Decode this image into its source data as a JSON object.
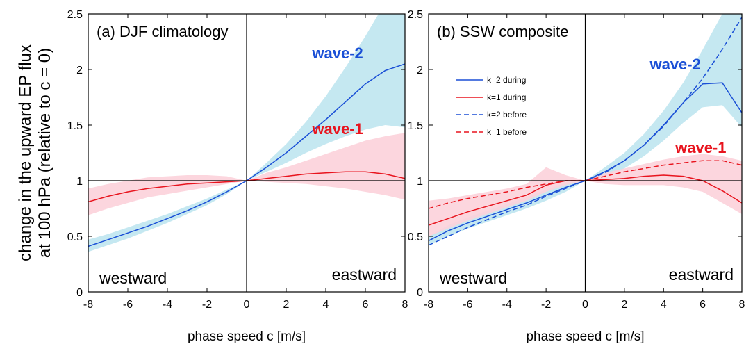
{
  "figure": {
    "ylabel_line1": "change in the upward EP flux",
    "ylabel_line2": "at 100 hPa (relative to c = 0)"
  },
  "colors": {
    "wave2_line": "#1a4fd6",
    "wave2_band": "#bfe6f0",
    "wave1_line": "#e8141e",
    "wave1_band": "#fcd2da"
  },
  "chart_data": [
    {
      "type": "line",
      "title": "(a) DJF climatology",
      "xlabel": "phase speed c [m/s]",
      "ylabel": "change in the upward EP flux at 100 hPa (relative to c = 0)",
      "xlim": [
        -8,
        8
      ],
      "ylim": [
        0,
        2.5
      ],
      "xticks": [
        -8,
        -6,
        -4,
        -2,
        0,
        2,
        4,
        6,
        8
      ],
      "yticks": [
        0,
        0.5,
        1,
        1.5,
        2,
        2.5
      ],
      "ytick_labels": [
        "0",
        "0.5",
        "1",
        "1.5",
        "2",
        "2.5"
      ],
      "annotations": {
        "left": "westward",
        "right": "eastward"
      },
      "x": [
        -8,
        -7,
        -6,
        -5,
        -4,
        -3,
        -2,
        -1,
        0,
        1,
        2,
        3,
        4,
        5,
        6,
        7,
        8
      ],
      "series": [
        {
          "name": "wave-2",
          "color": "#1a4fd6",
          "dash": "solid",
          "values": [
            0.41,
            0.47,
            0.53,
            0.59,
            0.66,
            0.73,
            0.81,
            0.9,
            1.0,
            1.12,
            1.25,
            1.4,
            1.55,
            1.71,
            1.87,
            1.99,
            2.05
          ],
          "band_lower": [
            0.36,
            0.42,
            0.48,
            0.55,
            0.62,
            0.7,
            0.78,
            0.88,
            1.0,
            1.08,
            1.16,
            1.25,
            1.33,
            1.4,
            1.46,
            1.5,
            1.48
          ],
          "band_upper": [
            0.47,
            0.52,
            0.58,
            0.64,
            0.7,
            0.77,
            0.84,
            0.92,
            1.0,
            1.16,
            1.33,
            1.53,
            1.76,
            2.02,
            2.3,
            2.6,
            2.8
          ]
        },
        {
          "name": "wave-1",
          "color": "#e8141e",
          "dash": "solid",
          "values": [
            0.81,
            0.86,
            0.9,
            0.93,
            0.95,
            0.97,
            0.98,
            0.99,
            1.0,
            1.02,
            1.04,
            1.06,
            1.07,
            1.08,
            1.08,
            1.06,
            1.02
          ],
          "band_lower": [
            0.69,
            0.75,
            0.8,
            0.85,
            0.88,
            0.91,
            0.94,
            0.97,
            1.0,
            0.99,
            0.98,
            0.97,
            0.95,
            0.93,
            0.9,
            0.87,
            0.83
          ],
          "band_upper": [
            0.93,
            0.97,
            1.0,
            1.03,
            1.04,
            1.05,
            1.05,
            1.04,
            1.0,
            1.07,
            1.12,
            1.18,
            1.24,
            1.3,
            1.36,
            1.4,
            1.43
          ]
        }
      ],
      "wave_labels": [
        {
          "text": "wave-2",
          "color": "#1a4fd6",
          "x": 4.6,
          "y": 2.1
        },
        {
          "text": "wave-1",
          "color": "#e8141e",
          "x": 4.6,
          "y": 1.42
        }
      ]
    },
    {
      "type": "line",
      "title": "(b) SSW composite",
      "xlabel": "phase speed c [m/s]",
      "xlim": [
        -8,
        8
      ],
      "ylim": [
        0,
        2.5
      ],
      "xticks": [
        -8,
        -6,
        -4,
        -2,
        0,
        2,
        4,
        6,
        8
      ],
      "yticks": [
        0,
        0.5,
        1,
        1.5,
        2,
        2.5
      ],
      "ytick_labels": [
        "0",
        "0.5",
        "1",
        "1.5",
        "2",
        "2.5"
      ],
      "annotations": {
        "left": "westward",
        "right": "eastward"
      },
      "legend": [
        "k=2 during",
        "k=1 during",
        "k=2 before",
        "k=1 before"
      ],
      "legend_position": "upper-left",
      "x": [
        -8,
        -7,
        -6,
        -5,
        -4,
        -3,
        -2,
        -1,
        0,
        1,
        2,
        3,
        4,
        5,
        6,
        7,
        8
      ],
      "series": [
        {
          "name": "k=2 during",
          "color": "#1a4fd6",
          "dash": "solid",
          "values": [
            0.46,
            0.55,
            0.62,
            0.68,
            0.74,
            0.8,
            0.87,
            0.94,
            1.0,
            1.08,
            1.18,
            1.32,
            1.5,
            1.7,
            1.87,
            1.88,
            1.61
          ],
          "band_lower": [
            0.42,
            0.5,
            0.57,
            0.63,
            0.69,
            0.75,
            0.82,
            0.9,
            1.0,
            1.04,
            1.11,
            1.22,
            1.36,
            1.52,
            1.66,
            1.68,
            1.48
          ],
          "band_upper": [
            0.5,
            0.6,
            0.67,
            0.73,
            0.79,
            0.85,
            0.92,
            0.98,
            1.0,
            1.12,
            1.25,
            1.42,
            1.63,
            1.88,
            2.18,
            2.5,
            2.8
          ]
        },
        {
          "name": "k=1 during",
          "color": "#e8141e",
          "dash": "solid",
          "values": [
            0.6,
            0.66,
            0.72,
            0.77,
            0.82,
            0.87,
            0.96,
            1.0,
            1.0,
            1.01,
            1.02,
            1.04,
            1.05,
            1.04,
            1.0,
            0.91,
            0.8
          ],
          "band_lower": [
            0.5,
            0.57,
            0.64,
            0.7,
            0.76,
            0.82,
            0.9,
            0.96,
            1.0,
            0.97,
            0.96,
            0.96,
            0.96,
            0.94,
            0.9,
            0.8,
            0.7
          ],
          "band_upper": [
            0.82,
            0.84,
            0.87,
            0.9,
            0.93,
            0.97,
            1.12,
            1.05,
            1.0,
            1.07,
            1.11,
            1.15,
            1.19,
            1.22,
            1.24,
            1.22,
            1.18
          ]
        },
        {
          "name": "k=2 before",
          "color": "#1a4fd6",
          "dash": "dashed",
          "values": [
            0.42,
            0.5,
            0.58,
            0.65,
            0.72,
            0.78,
            0.86,
            0.93,
            1.0,
            1.07,
            1.18,
            1.32,
            1.49,
            1.7,
            1.92,
            2.18,
            2.47
          ]
        },
        {
          "name": "k=1 before",
          "color": "#e8141e",
          "dash": "dashed",
          "values": [
            0.75,
            0.8,
            0.84,
            0.87,
            0.9,
            0.94,
            0.97,
            1.0,
            1.0,
            1.04,
            1.08,
            1.11,
            1.14,
            1.16,
            1.18,
            1.18,
            1.14
          ]
        }
      ],
      "bands": [
        {
          "series": "k=2 during",
          "color": "#bfe6f0"
        },
        {
          "series": "k=1 during",
          "color": "#fcd2da"
        }
      ],
      "wave_labels": [
        {
          "text": "wave-2",
          "color": "#1a4fd6",
          "x": 4.6,
          "y": 2.0
        },
        {
          "text": "wave-1",
          "color": "#e8141e",
          "x": 5.9,
          "y": 1.25
        }
      ]
    }
  ]
}
